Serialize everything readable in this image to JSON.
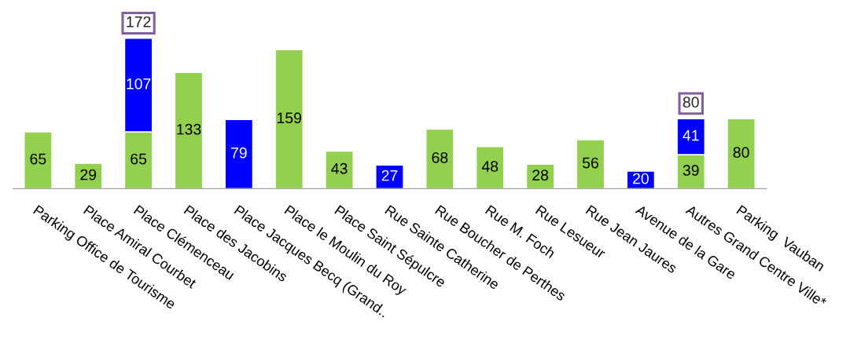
{
  "chart_data": {
    "type": "bar",
    "stacked": true,
    "data_labels": true,
    "grid": false,
    "categories": [
      "Parking Office de Tourisme",
      "Place Amiral Courbet",
      "Place Clémenceau",
      "Place des Jacobins",
      "Place Jacques Becq (Grand..",
      "Place le Moulin du Roy",
      "Place Saint Sépulcre",
      "Rue Sainte Catherine",
      "Rue Boucher de Perthes",
      "Rue M. Foch",
      "Rue Lesueur",
      "Rue Jean Jaures",
      "Avenue de la Gare",
      "Autres Grand Centre Ville*",
      "Parking  Vauban"
    ],
    "series": [
      {
        "color": "#92d050",
        "values": [
          65,
          29,
          65,
          133,
          null,
          159,
          43,
          null,
          68,
          48,
          28,
          56,
          null,
          39,
          80
        ]
      },
      {
        "color": "#0000ff",
        "values": [
          null,
          null,
          107,
          null,
          79,
          null,
          null,
          27,
          null,
          null,
          null,
          null,
          20,
          41,
          null
        ]
      }
    ],
    "totals": [
      null,
      null,
      "172",
      null,
      null,
      null,
      null,
      null,
      null,
      null,
      null,
      null,
      null,
      "80",
      null
    ]
  }
}
